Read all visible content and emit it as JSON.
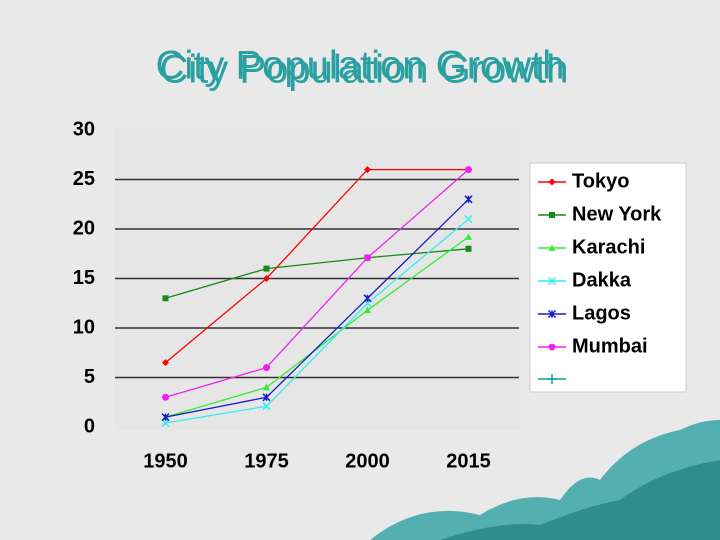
{
  "chart_data": {
    "type": "line",
    "title": "City Population Growth",
    "categories": [
      "1950",
      "1975",
      "2000",
      "2015"
    ],
    "series": [
      {
        "name": "Tokyo",
        "color": "#ff0000",
        "marker": "diamond",
        "values": [
          6.5,
          15,
          26,
          26
        ]
      },
      {
        "name": "New York",
        "color": "#168a16",
        "marker": "square",
        "values": [
          13,
          16,
          17.1,
          18
        ]
      },
      {
        "name": "Karachi",
        "color": "#33ee33",
        "marker": "triangle",
        "values": [
          1,
          4,
          11.8,
          19.2
        ]
      },
      {
        "name": "Dakka",
        "color": "#33eeee",
        "marker": "x",
        "values": [
          0.4,
          2.1,
          12.5,
          21
        ]
      },
      {
        "name": "Lagos",
        "color": "#1a1acc",
        "marker": "asterisk",
        "values": [
          1,
          3,
          13,
          23
        ]
      },
      {
        "name": "Mumbai",
        "color": "#ee22ee",
        "marker": "circle",
        "values": [
          3,
          6,
          17.1,
          26
        ]
      }
    ],
    "ylim": [
      0,
      30
    ],
    "yticks": [
      0,
      5,
      10,
      15,
      20,
      25,
      30
    ],
    "grid": true,
    "legend": "right"
  }
}
